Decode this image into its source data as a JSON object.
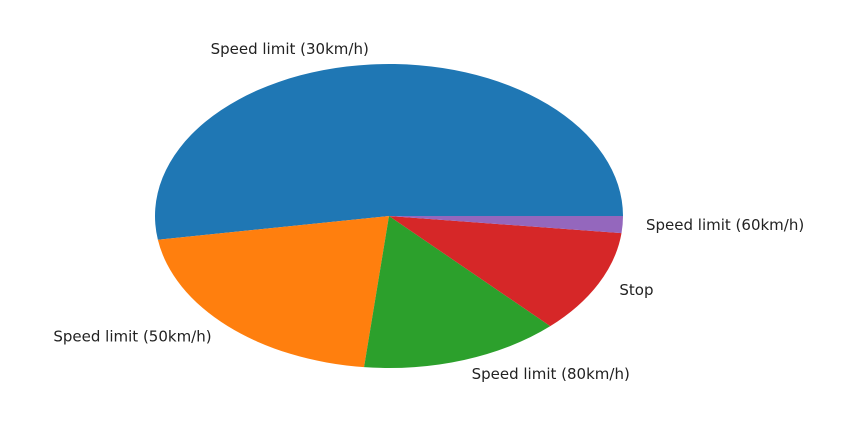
{
  "chart_data": {
    "type": "pie",
    "title": "",
    "start_angle_deg": 0,
    "direction": "counterclockwise",
    "slices": [
      {
        "label": "Speed limit (30km/h)",
        "value": 52.5,
        "color": "#1f77b4"
      },
      {
        "label": "Speed limit (50km/h)",
        "value": 20.8,
        "color": "#ff7f0e"
      },
      {
        "label": "Speed limit (80km/h)",
        "value": 13.8,
        "color": "#2ca02c"
      },
      {
        "label": "Stop",
        "value": 11.1,
        "color": "#d62728"
      },
      {
        "label": "Speed limit (60km/h)",
        "value": 1.8,
        "color": "#9467bd"
      }
    ]
  }
}
